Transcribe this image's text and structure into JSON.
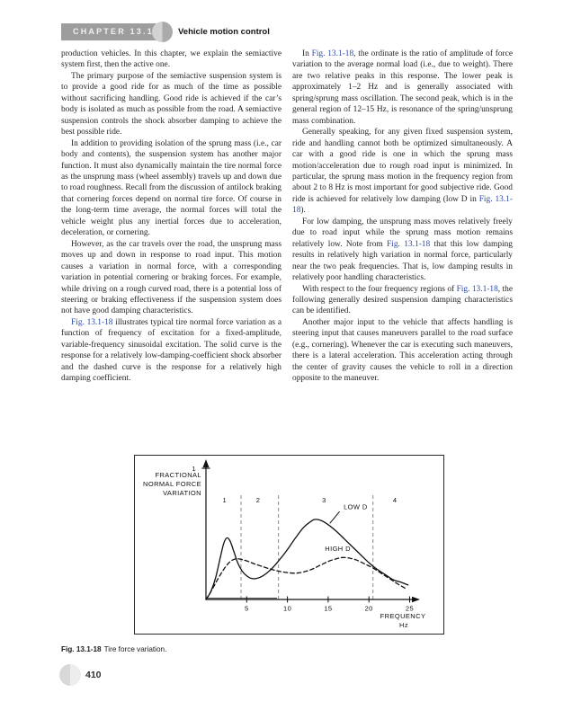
{
  "header": {
    "chapter": "CHAPTER 13.1",
    "title": "Vehicle motion control"
  },
  "columns": {
    "left": [
      [
        {
          "t": "production vehicles. In this chapter, we explain the semiactive system first, then the active one."
        }
      ],
      [
        {
          "t": "The primary purpose of the semiactive suspension system is to provide a good ride for as much of the time as possible without sacrificing handling. Good ride is achieved if the car’s body is isolated as much as possible from the road. A semiactive suspension controls the shock absorber damping to achieve the best possible ride."
        }
      ],
      [
        {
          "t": "In addition to providing isolation of the sprung mass (i.e., car body and contents), the suspension system has another major function. It must also dynamically maintain the tire normal force as the unsprung mass (wheel assembly) travels up and down due to road roughness. Recall from the discussion of antilock braking that cornering forces depend on normal tire force. Of course in the long-term time average, the normal forces will total the vehicle weight plus any inertial forces due to acceleration, deceleration, or cornering."
        }
      ],
      [
        {
          "t": "However, as the car travels over the road, the unsprung mass moves up and down in response to road input. This motion causes a variation in normal force, with a corresponding variation in potential cornering or braking forces. For example, while driving on a rough curved road, there is a potential loss of steering or braking effectiveness if the suspension system does not have good damping characteristics."
        }
      ],
      [
        {
          "t": "Fig. 13.1-18",
          "fig": true
        },
        {
          "t": " illustrates typical tire normal force variation as a function of frequency of excitation for a fixed-amplitude, variable-frequency sinusoidal excitation. The solid curve is the response for a relatively low-damping-coefficient shock absorber and the dashed curve is the response for a relatively high damping coefficient."
        }
      ]
    ],
    "right": [
      [
        {
          "t": "In "
        },
        {
          "t": "Fig. 13.1-18",
          "fig": true
        },
        {
          "t": ", the ordinate is the ratio of amplitude of force variation to the average normal load (i.e., due to weight). There are two relative peaks in this response. The lower peak is approximately 1–2 Hz and is generally associated with spring/sprung mass oscillation. The second peak, which is in the general region of 12–15 Hz, is resonance of the spring/unsprung mass combination."
        }
      ],
      [
        {
          "t": "Generally speaking, for any given fixed suspension system, ride and handling cannot both be optimized simultaneously. A car with a good ride is one in which the sprung mass motion/acceleration due to rough road input is minimized. In particular, the sprung mass motion in the frequency region from about 2 to 8 Hz is most important for good subjective ride. Good ride is achieved for relatively low damping (low D in "
        },
        {
          "t": "Fig. 13.1-18",
          "fig": true
        },
        {
          "t": ")."
        }
      ],
      [
        {
          "t": "For low damping, the unsprung mass moves relatively freely due to road input while the sprung mass motion remains relatively low. Note from "
        },
        {
          "t": "Fig. 13.1-18",
          "fig": true
        },
        {
          "t": " that this low damping results in relatively high variation in normal force, particularly near the two peak frequencies. That is, low damping results in relatively poor handling characteristics."
        }
      ],
      [
        {
          "t": "With respect to the four frequency regions of "
        },
        {
          "t": "Fig. 13.1-18",
          "fig": true
        },
        {
          "t": ", the following generally desired suspension damping characteristics can be identified."
        }
      ],
      [
        {
          "t": "Another major input to the vehicle that affects handling is steering input that causes maneuvers parallel to the road surface (e.g., cornering). Whenever the car is executing such maneuvers, there is a lateral acceleration. This acceleration acting through the center of gravity causes the vehicle to roll in a direction opposite to the maneuver."
        }
      ]
    ]
  },
  "figure": {
    "caption_label": "Fig. 13.1-18",
    "caption_text": "Tire force variation."
  },
  "footer": {
    "page_number": "410"
  },
  "colors": {
    "figure_reference_blue": "#2b4aa5",
    "chapter_bar_gray": "#9d9d9d",
    "region_line_gray": "#8a8a8a"
  },
  "chart_data": {
    "type": "line",
    "title": "",
    "xlabel_lines": [
      "FREQUENCY",
      "Hz"
    ],
    "ylabel_lines": [
      "FRACTIONAL",
      "NORMAL FORCE",
      "VARIATION"
    ],
    "xlim": [
      0,
      26
    ],
    "ylim": [
      0,
      1.07
    ],
    "x_ticks": [
      5,
      10,
      15,
      20,
      25
    ],
    "y_ticks": [
      1
    ],
    "grid": false,
    "region_boundaries_hz": [
      4.3,
      8.9,
      20.5
    ],
    "region_labels": [
      {
        "label": "1",
        "hz": 2.3,
        "v": 0.74
      },
      {
        "label": "2",
        "hz": 6.4,
        "v": 0.74
      },
      {
        "label": "3",
        "hz": 14.5,
        "v": 0.74
      },
      {
        "label": "4",
        "hz": 23.2,
        "v": 0.74
      }
    ],
    "series": [
      {
        "name": "LOW D",
        "dash": false,
        "label_hz": 16.9,
        "label_v": 0.69,
        "pointer": [
          [
            16.4,
            0.67
          ],
          [
            15.2,
            0.58
          ]
        ],
        "points": [
          [
            0,
            0
          ],
          [
            0.6,
            0.06
          ],
          [
            1.2,
            0.17
          ],
          [
            1.8,
            0.33
          ],
          [
            2.2,
            0.43
          ],
          [
            2.6,
            0.47
          ],
          [
            3.0,
            0.44
          ],
          [
            3.4,
            0.37
          ],
          [
            3.9,
            0.28
          ],
          [
            4.4,
            0.22
          ],
          [
            5.0,
            0.18
          ],
          [
            5.6,
            0.16
          ],
          [
            6.2,
            0.16
          ],
          [
            7.0,
            0.18
          ],
          [
            8.0,
            0.23
          ],
          [
            9.0,
            0.3
          ],
          [
            10.0,
            0.38
          ],
          [
            11.0,
            0.47
          ],
          [
            12.0,
            0.55
          ],
          [
            13.0,
            0.6
          ],
          [
            13.5,
            0.61
          ],
          [
            14.2,
            0.6
          ],
          [
            15.0,
            0.57
          ],
          [
            16.0,
            0.52
          ],
          [
            17.0,
            0.46
          ],
          [
            18.0,
            0.4
          ],
          [
            19.0,
            0.34
          ],
          [
            20.0,
            0.28
          ],
          [
            21.0,
            0.23
          ],
          [
            22.0,
            0.19
          ],
          [
            23.0,
            0.15
          ],
          [
            24.0,
            0.13
          ],
          [
            24.8,
            0.11
          ]
        ]
      },
      {
        "name": "HIGH D",
        "dash": true,
        "label_hz": 14.6,
        "label_v": 0.37,
        "points": [
          [
            0,
            0
          ],
          [
            0.7,
            0.07
          ],
          [
            1.5,
            0.16
          ],
          [
            2.3,
            0.24
          ],
          [
            3.0,
            0.29
          ],
          [
            3.7,
            0.31
          ],
          [
            4.4,
            0.305
          ],
          [
            5.2,
            0.29
          ],
          [
            6.0,
            0.27
          ],
          [
            7.0,
            0.25
          ],
          [
            8.0,
            0.23
          ],
          [
            9.0,
            0.215
          ],
          [
            10.0,
            0.205
          ],
          [
            11.0,
            0.2
          ],
          [
            12.0,
            0.21
          ],
          [
            13.0,
            0.23
          ],
          [
            14.0,
            0.26
          ],
          [
            15.0,
            0.29
          ],
          [
            16.0,
            0.31
          ],
          [
            16.8,
            0.32
          ],
          [
            17.6,
            0.315
          ],
          [
            18.5,
            0.3
          ],
          [
            19.5,
            0.27
          ],
          [
            20.5,
            0.24
          ],
          [
            21.5,
            0.2
          ],
          [
            22.5,
            0.16
          ],
          [
            23.5,
            0.12
          ],
          [
            24.6,
            0.08
          ]
        ]
      }
    ]
  }
}
